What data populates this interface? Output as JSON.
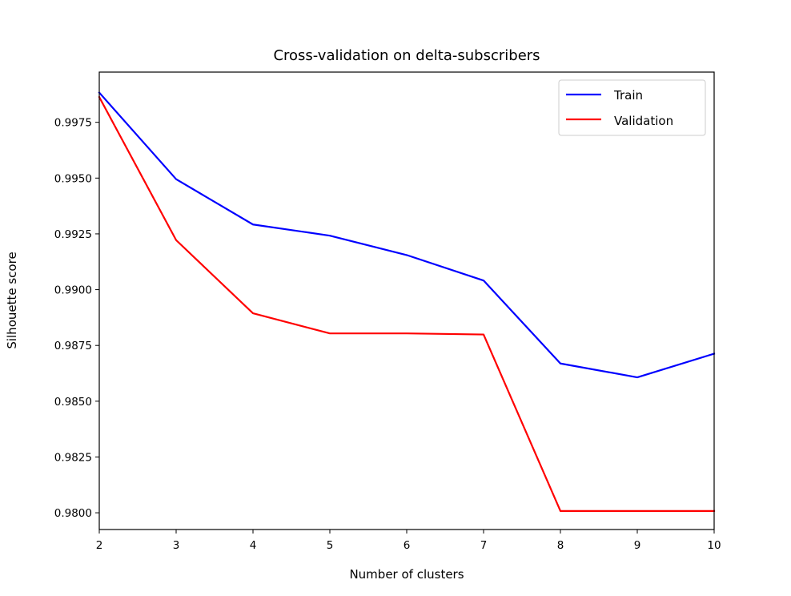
{
  "chart_data": {
    "type": "line",
    "title": "Cross-validation on delta-subscribers",
    "xlabel": "Number of clusters",
    "ylabel": "Silhouette score",
    "x": [
      2,
      3,
      4,
      5,
      6,
      7,
      8,
      9,
      10
    ],
    "xlim": [
      2,
      10
    ],
    "ylim": [
      0.97925,
      0.99975
    ],
    "xticks": [
      "2",
      "3",
      "4",
      "5",
      "6",
      "7",
      "8",
      "9",
      "10"
    ],
    "yticks": [
      "0.9800",
      "0.9825",
      "0.9850",
      "0.9875",
      "0.9900",
      "0.9925",
      "0.9950",
      "0.9975"
    ],
    "legend_position": "top-right",
    "grid": false,
    "series": [
      {
        "name": "Train",
        "color": "#0000ff",
        "values": [
          0.99883,
          0.99495,
          0.99292,
          0.99242,
          0.99155,
          0.99041,
          0.98669,
          0.98607,
          0.98713
        ]
      },
      {
        "name": "Validation",
        "color": "#ff0000",
        "values": [
          0.99863,
          0.99222,
          0.98894,
          0.98804,
          0.98804,
          0.98799,
          0.98008,
          0.98008,
          0.98008
        ]
      }
    ]
  }
}
